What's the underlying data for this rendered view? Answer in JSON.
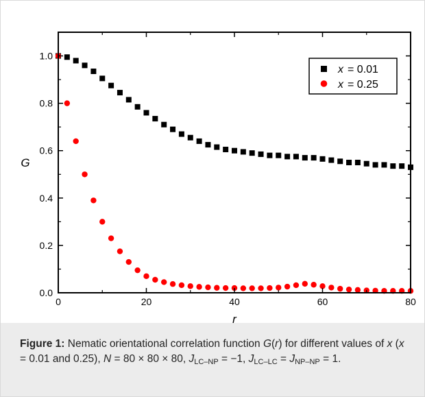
{
  "chart_data": {
    "type": "scatter",
    "title": "",
    "xlabel": "r",
    "ylabel": "G",
    "xlim": [
      0,
      80
    ],
    "ylim": [
      0.0,
      1.1
    ],
    "x_ticks": [
      "0",
      "20",
      "40",
      "60",
      "80"
    ],
    "y_ticks": [
      "0.0",
      "0.2",
      "0.4",
      "0.6",
      "0.8",
      "1.0"
    ],
    "legend": "top-right",
    "grid": false,
    "series": [
      {
        "name": "x = 0.01",
        "label_var": "x",
        "label_value": "= 0.01",
        "marker": "square",
        "color": "#000000",
        "x": [
          0,
          2,
          4,
          6,
          8,
          10,
          12,
          14,
          16,
          18,
          20,
          22,
          24,
          26,
          28,
          30,
          32,
          34,
          36,
          38,
          40,
          42,
          44,
          46,
          48,
          50,
          52,
          54,
          56,
          58,
          60,
          62,
          64,
          66,
          68,
          70,
          72,
          74,
          76,
          78,
          80
        ],
        "values": [
          1.0,
          0.995,
          0.98,
          0.96,
          0.935,
          0.905,
          0.875,
          0.845,
          0.815,
          0.785,
          0.76,
          0.735,
          0.71,
          0.69,
          0.67,
          0.655,
          0.64,
          0.625,
          0.615,
          0.605,
          0.6,
          0.595,
          0.59,
          0.585,
          0.58,
          0.58,
          0.575,
          0.575,
          0.57,
          0.57,
          0.565,
          0.56,
          0.555,
          0.55,
          0.55,
          0.545,
          0.54,
          0.54,
          0.535,
          0.535,
          0.53
        ]
      },
      {
        "name": "x = 0.25",
        "label_var": "x",
        "label_value": "= 0.25",
        "marker": "circle",
        "color": "#ff0000",
        "x": [
          0,
          2,
          4,
          6,
          8,
          10,
          12,
          14,
          16,
          18,
          20,
          22,
          24,
          26,
          28,
          30,
          32,
          34,
          36,
          38,
          40,
          42,
          44,
          46,
          48,
          50,
          52,
          54,
          56,
          58,
          60,
          62,
          64,
          66,
          68,
          70,
          72,
          74,
          76,
          78,
          80
        ],
        "values": [
          1.0,
          0.8,
          0.64,
          0.5,
          0.39,
          0.3,
          0.23,
          0.175,
          0.13,
          0.095,
          0.07,
          0.055,
          0.045,
          0.037,
          0.032,
          0.028,
          0.025,
          0.023,
          0.021,
          0.02,
          0.02,
          0.019,
          0.019,
          0.019,
          0.02,
          0.022,
          0.026,
          0.032,
          0.038,
          0.034,
          0.028,
          0.022,
          0.017,
          0.014,
          0.012,
          0.01,
          0.009,
          0.008,
          0.008,
          0.008,
          0.008
        ]
      }
    ]
  },
  "caption": {
    "label": "Figure 1:",
    "t1": " Nematic orientational correlation function ",
    "G": "G",
    "t2": "(",
    "r": "r",
    "t3": ") for different values of ",
    "x1": "x",
    "t4": " (",
    "x2": "x",
    "t5": " = 0.01 and 0.25), ",
    "N": "N",
    "t6": " = 80 × 80 × 80, ",
    "J1": "J",
    "s1": "LC–NP",
    "t7": " = −1, ",
    "J2": "J",
    "s2": "LC–LC",
    "t8": " = ",
    "J3": "J",
    "s3": "NP–NP",
    "t9": " = 1."
  }
}
